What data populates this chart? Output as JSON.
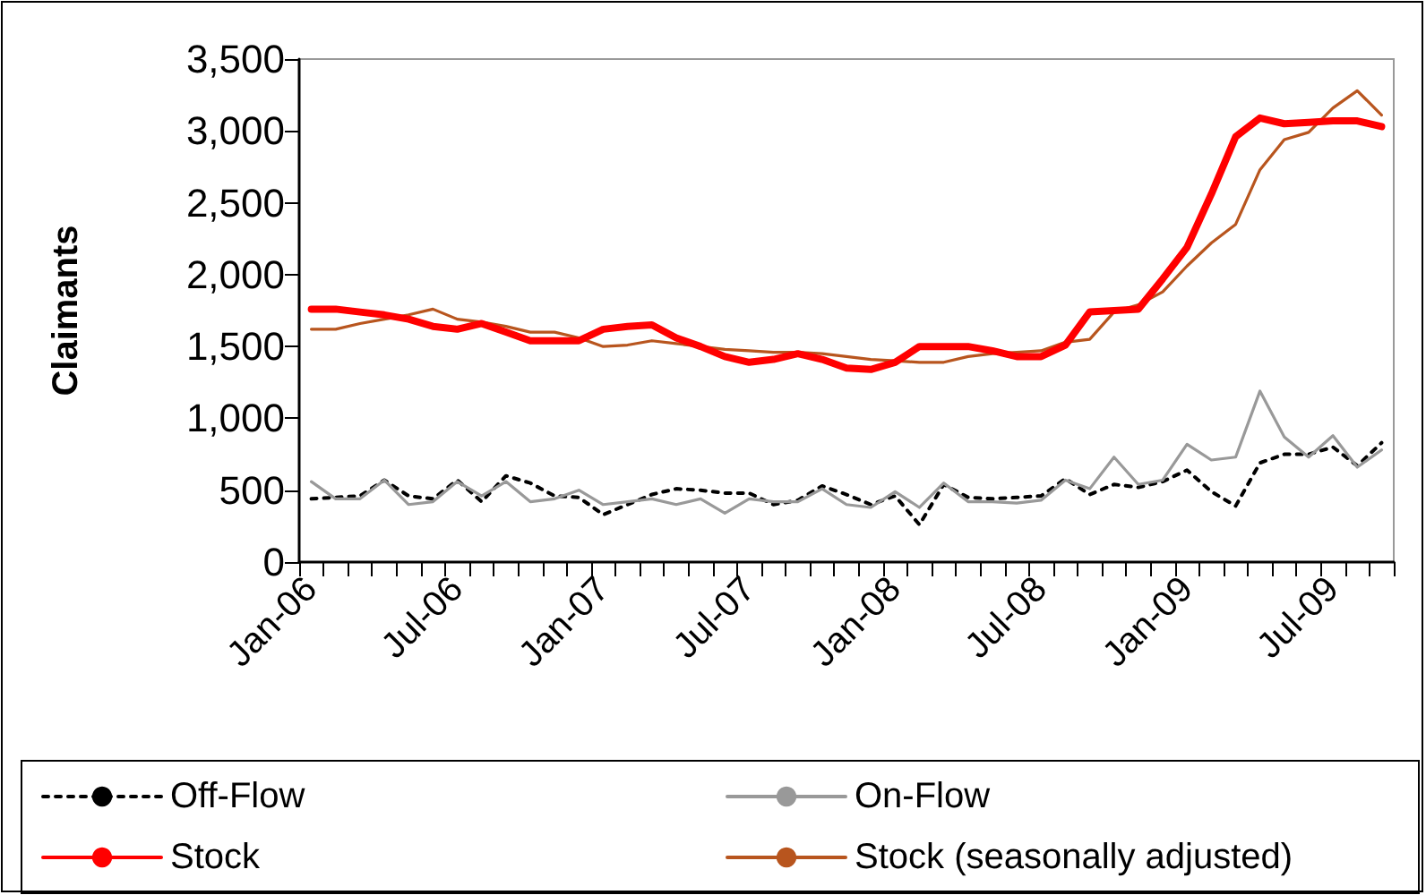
{
  "chart_data": {
    "type": "line",
    "ylabel": "Claimants",
    "categories": [
      "Jan-06",
      null,
      null,
      null,
      null,
      null,
      "Jul-06",
      null,
      null,
      null,
      null,
      null,
      "Jan-07",
      null,
      null,
      null,
      null,
      null,
      "Jul-07",
      null,
      null,
      null,
      null,
      null,
      "Jan-08",
      null,
      null,
      null,
      null,
      null,
      "Jul-08",
      null,
      null,
      null,
      null,
      null,
      "Jan-09",
      null,
      null,
      null,
      null,
      null,
      "Jul-09",
      null,
      null
    ],
    "series": [
      {
        "name": "Off-Flow",
        "color": "#000000",
        "line_style": "dotted",
        "values": [
          440,
          450,
          460,
          570,
          460,
          440,
          570,
          420,
          600,
          550,
          460,
          450,
          330,
          400,
          470,
          510,
          500,
          480,
          480,
          400,
          430,
          530,
          470,
          400,
          460,
          260,
          540,
          450,
          440,
          450,
          460,
          580,
          470,
          540,
          520,
          560,
          640,
          490,
          390,
          690,
          750,
          750,
          800,
          670,
          830
        ]
      },
      {
        "name": "On-Flow",
        "color": "#999999",
        "line_style": "solid",
        "values": [
          560,
          440,
          440,
          570,
          400,
          420,
          560,
          460,
          560,
          420,
          440,
          500,
          400,
          420,
          440,
          400,
          440,
          340,
          440,
          420,
          420,
          510,
          400,
          380,
          490,
          380,
          550,
          420,
          420,
          410,
          430,
          570,
          510,
          730,
          540,
          570,
          820,
          710,
          730,
          1190,
          870,
          730,
          880,
          660,
          780
        ]
      },
      {
        "name": "Stock",
        "color": "#ff0000",
        "line_style": "solid",
        "values": [
          1760,
          1760,
          1740,
          1720,
          1690,
          1640,
          1620,
          1660,
          1600,
          1540,
          1540,
          1540,
          1620,
          1640,
          1650,
          1560,
          1500,
          1430,
          1390,
          1410,
          1450,
          1410,
          1350,
          1340,
          1390,
          1500,
          1500,
          1500,
          1470,
          1430,
          1430,
          1510,
          1740,
          1750,
          1760,
          1970,
          2190,
          2560,
          2960,
          3090,
          3050,
          3060,
          3070,
          3070,
          3030
        ]
      },
      {
        "name": "Stock (seasonally adjusted)",
        "color": "#b8551e",
        "line_style": "solid",
        "values": [
          1620,
          1620,
          1660,
          1690,
          1720,
          1760,
          1690,
          1670,
          1640,
          1600,
          1600,
          1560,
          1500,
          1510,
          1540,
          1520,
          1500,
          1480,
          1470,
          1460,
          1460,
          1450,
          1430,
          1410,
          1400,
          1390,
          1390,
          1430,
          1450,
          1460,
          1470,
          1530,
          1550,
          1740,
          1790,
          1880,
          2060,
          2220,
          2350,
          2730,
          2940,
          2990,
          3160,
          3280,
          3110
        ]
      }
    ],
    "ylim": [
      0,
      3500
    ],
    "yticks": [
      0,
      500,
      {
        "value": 1000,
        "label": "1,000"
      },
      {
        "value": 1500,
        "label": "1,500"
      },
      {
        "value": 2000,
        "label": "2,000"
      },
      {
        "value": 2500,
        "label": "2,500"
      },
      {
        "value": 3000,
        "label": "3,000"
      },
      {
        "value": 3500,
        "label": "3,500"
      }
    ],
    "grid": false,
    "legend": "bottom",
    "marker": "none"
  }
}
